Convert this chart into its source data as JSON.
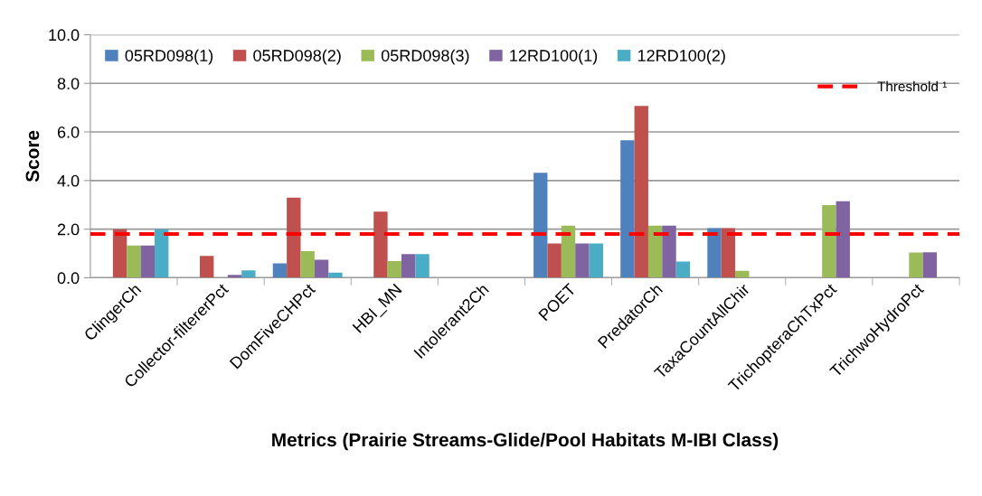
{
  "chart_data": {
    "type": "bar",
    "xlabel": "Metrics (Prairie Streams-Glide/Pool Habitats M-IBI Class)",
    "ylabel": "Score",
    "categories": [
      "ClingerCh",
      "Collector-filtererPct",
      "DomFiveCHPct",
      "HBI_MN",
      "Intolerant2Ch",
      "POET",
      "PredatorCh",
      "TaxaCountAllChir",
      "TrichopteraChTxPct",
      "TrichwoHydroPct"
    ],
    "series": [
      {
        "name": "05RD098(1)",
        "color": "#4f81bd",
        "values": [
          null,
          null,
          0.59,
          null,
          null,
          4.32,
          5.66,
          2.04,
          null,
          null
        ]
      },
      {
        "name": "05RD098(2)",
        "color": "#c0504d",
        "values": [
          2.0,
          0.9,
          3.3,
          2.72,
          null,
          1.41,
          7.07,
          2.04,
          null,
          null
        ]
      },
      {
        "name": "05RD098(3)",
        "color": "#9bbb59",
        "values": [
          1.33,
          null,
          1.09,
          0.69,
          null,
          2.14,
          2.14,
          0.29,
          2.99,
          1.04
        ]
      },
      {
        "name": "12RD100(1)",
        "color": "#8064a2",
        "values": [
          1.33,
          0.12,
          0.74,
          0.97,
          null,
          1.41,
          2.14,
          0.02,
          3.15,
          1.05
        ]
      },
      {
        "name": "12RD100(2)",
        "color": "#4bacc6",
        "values": [
          2.0,
          0.3,
          0.21,
          0.97,
          null,
          1.41,
          0.67,
          0.02,
          null,
          null
        ]
      }
    ],
    "ref_lines": [
      {
        "axis": "y",
        "value": 1.8,
        "label": "Threshold ¹",
        "color": "#ff0000",
        "line_style": "dashed"
      }
    ],
    "ylim": [
      0,
      10
    ],
    "yticks": [
      {
        "value": 0,
        "label": "0.0"
      },
      {
        "value": 2,
        "label": "2.0"
      },
      {
        "value": 4,
        "label": "4.0"
      },
      {
        "value": 6,
        "label": "6.0"
      },
      {
        "value": 8,
        "label": "8.0"
      },
      {
        "value": 10,
        "label": "10.0"
      }
    ],
    "grid": "y",
    "legend": "top left"
  }
}
